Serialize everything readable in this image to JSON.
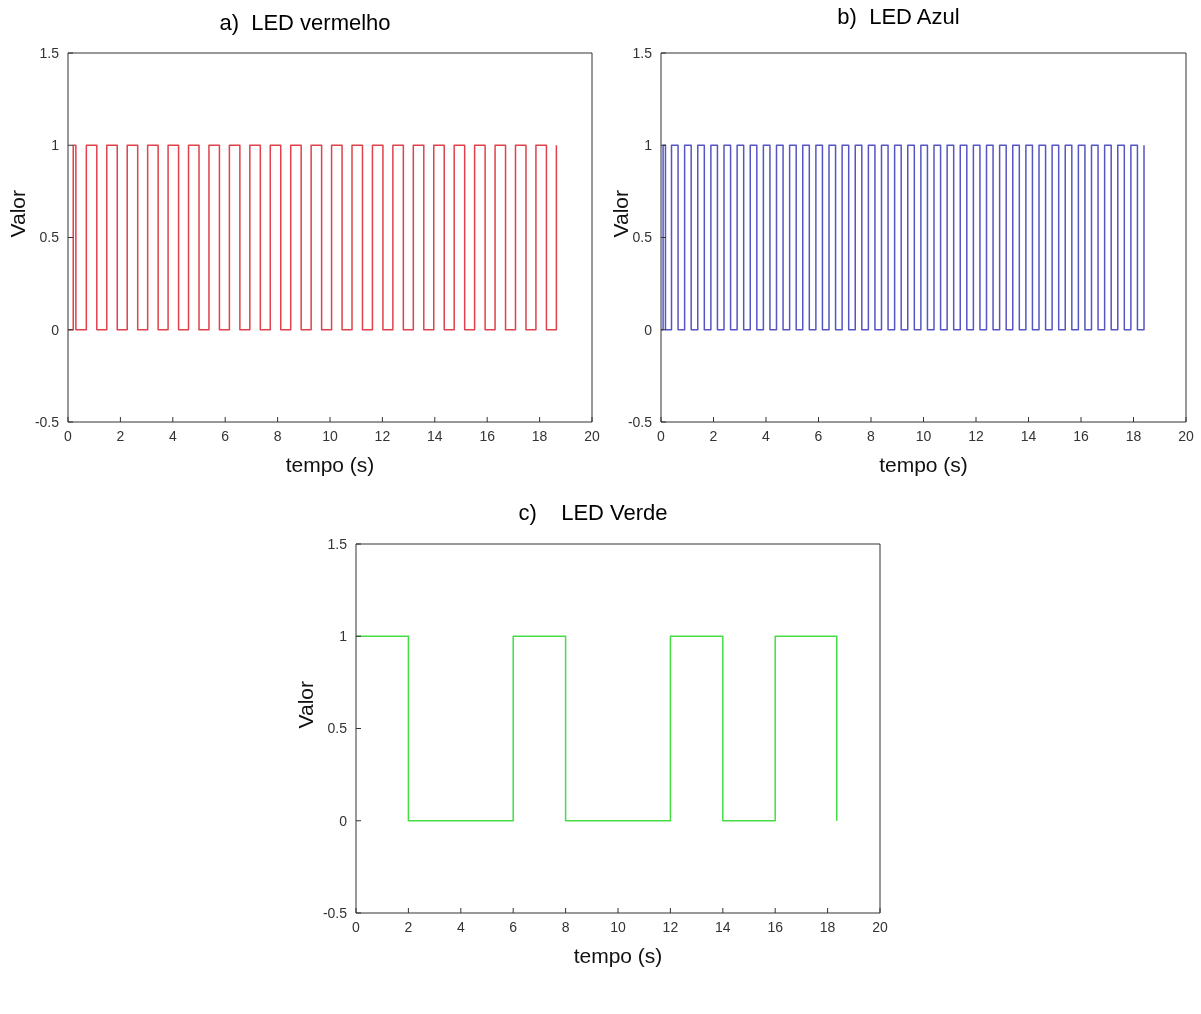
{
  "chart_data": [
    {
      "type": "step",
      "title": "a)  LED vermelho",
      "xlabel": "tempo (s)",
      "ylabel": "Valor",
      "xlim": [
        0,
        20
      ],
      "xticks": [
        0,
        2,
        4,
        6,
        8,
        10,
        12,
        14,
        16,
        18,
        20
      ],
      "ylim": [
        -0.5,
        1.5
      ],
      "yticks": [
        -0.5,
        0,
        0.5,
        1,
        1.5
      ],
      "grid": false,
      "legend": false,
      "series": [
        {
          "color": "#e0414b",
          "x": [
            0,
            0.2,
            0.3,
            0.7,
            1.1,
            1.48,
            1.88,
            2.26,
            2.66,
            3.04,
            3.44,
            3.82,
            4.22,
            4.6,
            5.0,
            5.38,
            5.78,
            6.16,
            6.56,
            6.94,
            7.34,
            7.72,
            8.12,
            8.5,
            8.9,
            9.28,
            9.68,
            10.06,
            10.46,
            10.84,
            11.24,
            11.62,
            12.02,
            12.4,
            12.8,
            13.18,
            13.58,
            13.96,
            14.36,
            14.74,
            15.14,
            15.52,
            15.92,
            16.3,
            16.7,
            17.08,
            17.48,
            17.86,
            18.26,
            18.64
          ],
          "values": [
            0,
            1,
            0,
            1,
            0,
            1,
            0,
            1,
            0,
            1,
            0,
            1,
            0,
            1,
            0,
            1,
            0,
            1,
            0,
            1,
            0,
            1,
            0,
            1,
            0,
            1,
            0,
            1,
            0,
            1,
            0,
            1,
            0,
            1,
            0,
            1,
            0,
            1,
            0,
            1,
            0,
            1,
            0,
            1,
            0,
            1,
            0,
            1,
            0,
            1
          ]
        }
      ]
    },
    {
      "type": "step",
      "title": "b)  LED Azul",
      "xlabel": "tempo (s)",
      "ylabel": "Valor",
      "xlim": [
        0,
        20
      ],
      "xticks": [
        0,
        2,
        4,
        6,
        8,
        10,
        12,
        14,
        16,
        18,
        20
      ],
      "ylim": [
        -0.5,
        1.5
      ],
      "yticks": [
        -0.5,
        0,
        0.5,
        1,
        1.5
      ],
      "grid": false,
      "legend": false,
      "series": [
        {
          "color": "#5555c4",
          "x": [
            0,
            0.08,
            0.17,
            0.4,
            0.65,
            0.9,
            1.15,
            1.4,
            1.65,
            1.9,
            2.15,
            2.4,
            2.65,
            2.9,
            3.15,
            3.4,
            3.65,
            3.9,
            4.15,
            4.4,
            4.65,
            4.9,
            5.15,
            5.4,
            5.65,
            5.9,
            6.15,
            6.4,
            6.65,
            6.9,
            7.15,
            7.4,
            7.65,
            7.9,
            8.15,
            8.4,
            8.65,
            8.9,
            9.15,
            9.4,
            9.65,
            9.9,
            10.15,
            10.4,
            10.65,
            10.9,
            11.15,
            11.4,
            11.65,
            11.9,
            12.15,
            12.4,
            12.65,
            12.9,
            13.15,
            13.4,
            13.65,
            13.9,
            14.15,
            14.4,
            14.65,
            14.9,
            15.15,
            15.4,
            15.65,
            15.9,
            16.15,
            16.4,
            16.65,
            16.9,
            17.15,
            17.4,
            17.65,
            17.9,
            18.15,
            18.4
          ],
          "values": [
            0,
            1,
            0,
            1,
            0,
            1,
            0,
            1,
            0,
            1,
            0,
            1,
            0,
            1,
            0,
            1,
            0,
            1,
            0,
            1,
            0,
            1,
            0,
            1,
            0,
            1,
            0,
            1,
            0,
            1,
            0,
            1,
            0,
            1,
            0,
            1,
            0,
            1,
            0,
            1,
            0,
            1,
            0,
            1,
            0,
            1,
            0,
            1,
            0,
            1,
            0,
            1,
            0,
            1,
            0,
            1,
            0,
            1,
            0,
            1,
            0,
            1,
            0,
            1,
            0,
            1,
            0,
            1,
            0,
            1,
            0,
            1,
            0,
            1,
            0,
            1
          ]
        }
      ]
    },
    {
      "type": "step",
      "title": "c)    LED Verde",
      "xlabel": "tempo (s)",
      "ylabel": "Valor",
      "xlim": [
        0,
        20
      ],
      "xticks": [
        0,
        2,
        4,
        6,
        8,
        10,
        12,
        14,
        16,
        18,
        20
      ],
      "ylim": [
        -0.5,
        1.5
      ],
      "yticks": [
        -0.5,
        0,
        0.5,
        1,
        1.5
      ],
      "grid": false,
      "legend": false,
      "series": [
        {
          "color": "#44dd44",
          "x": [
            0,
            2,
            6,
            8,
            12,
            14,
            16,
            18.35
          ],
          "values": [
            1,
            0,
            1,
            0,
            1,
            0,
            1,
            0
          ]
        }
      ]
    }
  ]
}
